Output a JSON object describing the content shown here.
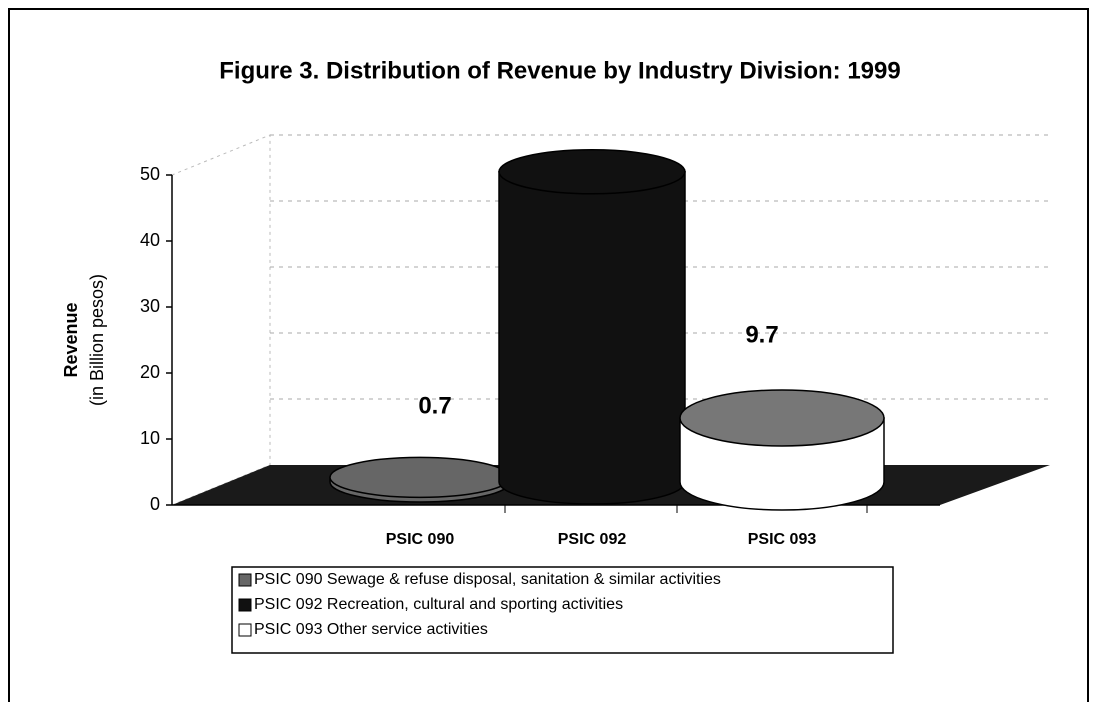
{
  "chart_data": {
    "type": "bar3d",
    "title": "Figure 3. Distribution of Revenue by Industry Division: 1999",
    "ylabel": "Revenue",
    "ylabel_sub": "(in Billion pesos)",
    "categories": [
      "PSIC 090",
      "PSIC 092",
      "PSIC 093"
    ],
    "values": [
      0.7,
      47,
      9.7
    ],
    "value_labels": [
      "0.7",
      null,
      "9.7"
    ],
    "colors": [
      "#666666",
      "#111111",
      "#ffffff"
    ],
    "legend": [
      "PSIC 090  Sewage & refuse disposal, sanitation & similar activities",
      "PSIC 092  Recreation, cultural and sporting activities",
      "PSIC 093  Other service activities"
    ],
    "ylim": [
      0,
      50
    ],
    "yticks": [
      0,
      10,
      20,
      30,
      40,
      50
    ],
    "grid": true
  }
}
